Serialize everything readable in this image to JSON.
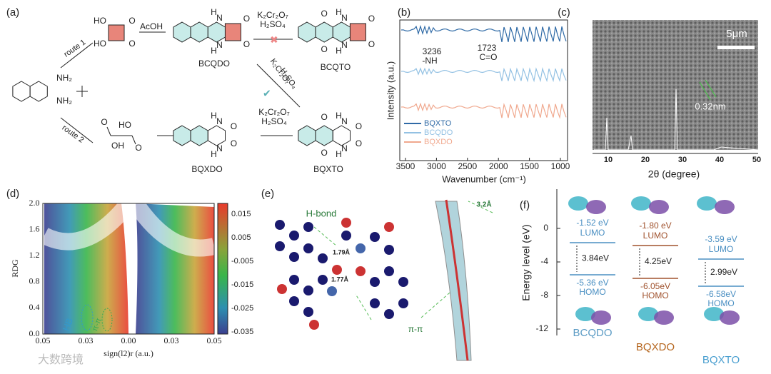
{
  "watermark": "大数跨境",
  "a": {
    "label": "(a)",
    "route1": "route 1",
    "route2": "route 2",
    "acoh": "AcOH",
    "ox_top": [
      "K₂Cr₂O₇",
      "H₂SO₄"
    ],
    "ox_diag": [
      "K₂Cr₂O₇",
      "H₂SO₄"
    ],
    "ox_bottom": [
      "K₂Cr₂O₇",
      "H₂SO₄"
    ],
    "start": [
      "NH₂",
      "NH₂"
    ],
    "squaric": [
      "HO",
      "HO",
      "O",
      "O"
    ],
    "oxalic": [
      "O",
      "OH",
      "HO",
      "O"
    ],
    "molecules": [
      {
        "name": "BCQDO",
        "atoms": [
          "H",
          "N",
          "N",
          "H",
          "O",
          "O"
        ]
      },
      {
        "name": "BCQTO",
        "atoms": [
          "O",
          "O",
          "H",
          "N",
          "N",
          "H",
          "O",
          "O"
        ]
      },
      {
        "name": "BQXDO",
        "atoms": [
          "H",
          "N",
          "N",
          "H",
          "O",
          "O"
        ]
      },
      {
        "name": "BQXTO",
        "atoms": [
          "O",
          "O",
          "H",
          "N",
          "N",
          "H",
          "O",
          "O"
        ]
      }
    ]
  },
  "b": {
    "label": "(b)",
    "ylabel": "Intensity (a.u.)",
    "xlabel": "Wavenumber (cm⁻¹)",
    "xticks": [
      "3500",
      "3000",
      "2500",
      "2000",
      "1500",
      "1000"
    ],
    "annotations": [
      "3236",
      "-NH",
      "1723",
      "C=O"
    ],
    "legend": [
      {
        "name": "BQXTO",
        "color": "#2f6aa6"
      },
      {
        "name": "BCQDO",
        "color": "#93c1e3"
      },
      {
        "name": "BQXDO",
        "color": "#f0a88e"
      }
    ]
  },
  "c": {
    "label": "(c)",
    "scale": "5μm",
    "spacing": "0.32nm",
    "xlabel": "2θ (degree)",
    "xticks": [
      "10",
      "20",
      "30",
      "40",
      "50"
    ]
  },
  "d": {
    "label": "(d)",
    "ylabel": "RDG",
    "xlabel": "sign(l2)r (a.u.)",
    "yticks": [
      "2.0",
      "1.6",
      "1.2",
      "0.8",
      "0.4",
      "0.0"
    ],
    "xticks": [
      "0.05",
      "0.03",
      "0.00",
      "0.03",
      "0.05"
    ],
    "colorbar": [
      "0.015",
      "0.005",
      "-0.005",
      "-0.015",
      "-0.025",
      "-0.035"
    ],
    "annotations": [
      "HB",
      "π-π"
    ]
  },
  "e": {
    "label": "(e)",
    "hbond": "H-bond",
    "distances": [
      "1.79Å",
      "1.77Å",
      "3.2Å"
    ],
    "pipi": "π-π"
  },
  "f": {
    "label": "(f)",
    "ylabel": "Energy level (eV)",
    "yticks": [
      "0",
      "-4",
      "-8",
      "-12"
    ],
    "columns": [
      {
        "name": "BCQDO",
        "lumo": "-1.52 eV",
        "lumo_label": "LUMO",
        "gap": "3.84eV",
        "homo": "-5.36 eV",
        "homo_label": "HOMO"
      },
      {
        "name": "BQXDO",
        "lumo": "-1.80 eV",
        "lumo_label": "LUMO",
        "gap": "4.25eV",
        "homo": "-6.05eV",
        "homo_label": "HOMO"
      },
      {
        "name": "BQXTO",
        "lumo": "-3.59 eV",
        "lumo_label": "LUMO",
        "gap": "2.99eV",
        "homo": "-6.58eV",
        "homo_label": "HOMO"
      }
    ]
  }
}
